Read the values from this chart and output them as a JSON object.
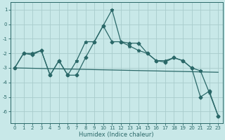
{
  "title": "",
  "xlabel": "Humidex (Indice chaleur)",
  "background_color": "#c8e8e8",
  "grid_color": "#a8cccc",
  "line_color": "#2a6868",
  "xlim": [
    -0.5,
    23.5
  ],
  "ylim": [
    -6.8,
    1.5
  ],
  "yticks": [
    -6,
    -5,
    -4,
    -3,
    -2,
    -1,
    0,
    1
  ],
  "xticks": [
    0,
    1,
    2,
    3,
    4,
    5,
    6,
    7,
    8,
    9,
    10,
    11,
    12,
    13,
    14,
    15,
    16,
    17,
    18,
    19,
    20,
    21,
    22,
    23
  ],
  "series1_x": [
    0,
    1,
    2,
    3,
    4,
    5,
    6,
    7,
    8,
    9,
    10,
    11,
    12,
    13,
    14,
    15,
    16,
    17,
    18,
    19,
    20,
    21,
    22,
    23
  ],
  "series1_y": [
    -3.0,
    -2.0,
    -2.0,
    -1.8,
    -3.5,
    -2.5,
    -3.5,
    -2.5,
    -1.2,
    -1.2,
    -0.1,
    1.0,
    -1.2,
    -1.5,
    -1.8,
    -2.0,
    -2.5,
    -2.5,
    -2.3,
    -2.5,
    -3.0,
    -3.2,
    -4.7,
    -6.3
  ],
  "series2_x": [
    0,
    1,
    2,
    3,
    4,
    5,
    6,
    7,
    8,
    9,
    10,
    11,
    12,
    13,
    14,
    15,
    16,
    17,
    18,
    19,
    20,
    21,
    22,
    23
  ],
  "series2_y": [
    -3.0,
    -2.0,
    -2.1,
    -1.8,
    -3.5,
    -2.5,
    -3.5,
    -3.5,
    -2.3,
    -1.2,
    -0.1,
    -1.2,
    -1.2,
    -1.3,
    -1.3,
    -2.0,
    -2.5,
    -2.6,
    -2.3,
    -2.5,
    -3.0,
    -5.0,
    -4.6,
    -6.3
  ],
  "series3_x": [
    0,
    23
  ],
  "series3_y": [
    -3.0,
    -3.3
  ],
  "marker1": "*",
  "marker2": "D",
  "markersize1": 3.5,
  "markersize2": 2.5,
  "linewidth": 0.9,
  "tick_fontsize": 5.0,
  "xlabel_fontsize": 6.0
}
